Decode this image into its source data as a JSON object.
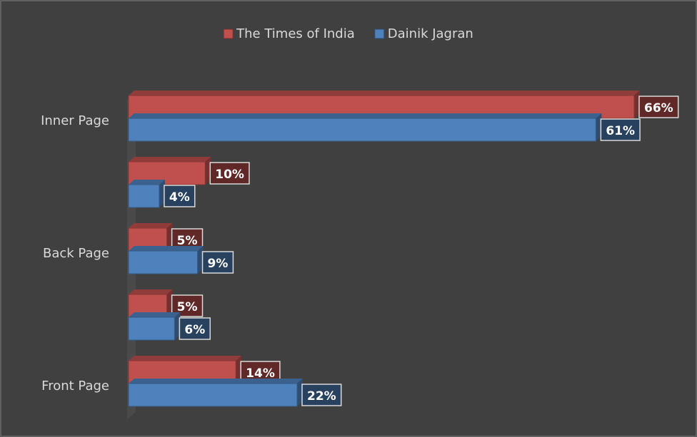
{
  "chart_data": {
    "type": "bar",
    "orientation": "horizontal",
    "categories": [
      "Inner Page",
      null,
      "Back Page",
      null,
      "Front Page"
    ],
    "series": [
      {
        "name": "The Times of India",
        "color": "#c0504d",
        "values": [
          66,
          10,
          5,
          5,
          14
        ],
        "value_labels": [
          "66%",
          "10%",
          "5%",
          "5%",
          "14%"
        ]
      },
      {
        "name": "Dainik Jagran",
        "color": "#4f81bd",
        "values": [
          61,
          4,
          9,
          6,
          22
        ],
        "value_labels": [
          "61%",
          "4%",
          "9%",
          "6%",
          "22%"
        ]
      }
    ],
    "legend": "top"
  }
}
